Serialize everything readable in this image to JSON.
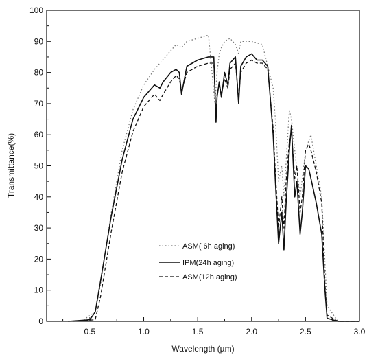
{
  "chart_data": {
    "type": "line",
    "title": "",
    "xlabel": "Wavelength (µm)",
    "ylabel": "Transmittance(%)",
    "xlim": [
      0.1,
      3.0
    ],
    "ylim": [
      0,
      100
    ],
    "x_ticks": [
      {
        "value": 0.5,
        "label": "0.5"
      },
      {
        "value": 1.0,
        "label": "1.0"
      },
      {
        "value": 1.5,
        "label": "1.5"
      },
      {
        "value": 2.0,
        "label": "2.0"
      },
      {
        "value": 2.5,
        "label": "2.5"
      },
      {
        "value": 3.0,
        "label": "3.0"
      }
    ],
    "y_ticks": [
      {
        "value": 0,
        "label": "0"
      },
      {
        "value": 10,
        "label": "10"
      },
      {
        "value": 20,
        "label": "20"
      },
      {
        "value": 30,
        "label": "30"
      },
      {
        "value": 40,
        "label": "40"
      },
      {
        "value": 50,
        "label": "50"
      },
      {
        "value": 60,
        "label": "60"
      },
      {
        "value": 70,
        "label": "70"
      },
      {
        "value": 80,
        "label": "80"
      },
      {
        "value": 90,
        "label": "90"
      },
      {
        "value": 100,
        "label": "100"
      }
    ],
    "grid": false,
    "legend_position": "lower-right",
    "series": [
      {
        "name": "ASM( 6h aging)",
        "style": "dotted",
        "color": "#777777",
        "x": [
          0.42,
          0.55,
          0.6,
          0.7,
          0.8,
          0.9,
          1.0,
          1.1,
          1.15,
          1.2,
          1.3,
          1.35,
          1.4,
          1.5,
          1.6,
          1.66,
          1.68,
          1.7,
          1.72,
          1.75,
          1.8,
          1.85,
          1.88,
          1.9,
          2.0,
          2.1,
          2.2,
          2.22,
          2.25,
          2.28,
          2.3,
          2.35,
          2.37,
          2.4,
          2.45,
          2.5,
          2.55,
          2.6,
          2.65,
          2.7,
          2.8
        ],
        "y": [
          0,
          3,
          12,
          35,
          55,
          68,
          76,
          81,
          83,
          85,
          89,
          88,
          90,
          91,
          92,
          70,
          80,
          86,
          88,
          90,
          91,
          89,
          86,
          90,
          90,
          89,
          75,
          65,
          45,
          50,
          40,
          68,
          65,
          55,
          40,
          55,
          60,
          50,
          40,
          5,
          0
        ]
      },
      {
        "name": "IPM(24h aging)",
        "style": "solid",
        "color": "#111111",
        "x": [
          0.3,
          0.5,
          0.55,
          0.6,
          0.7,
          0.8,
          0.9,
          1.0,
          1.1,
          1.15,
          1.18,
          1.25,
          1.3,
          1.33,
          1.35,
          1.4,
          1.5,
          1.6,
          1.65,
          1.67,
          1.68,
          1.7,
          1.72,
          1.75,
          1.78,
          1.8,
          1.85,
          1.88,
          1.9,
          1.95,
          2.0,
          2.05,
          2.1,
          2.15,
          2.2,
          2.22,
          2.25,
          2.28,
          2.3,
          2.32,
          2.35,
          2.37,
          2.4,
          2.42,
          2.45,
          2.47,
          2.5,
          2.53,
          2.55,
          2.6,
          2.65,
          2.68,
          2.7,
          2.8,
          3.0
        ],
        "y": [
          0,
          0.5,
          3,
          13,
          34,
          52,
          65,
          72,
          76,
          75,
          77,
          80,
          81,
          80,
          73,
          82,
          84,
          85,
          85,
          64,
          72,
          77,
          72,
          80,
          76,
          83,
          85,
          70,
          82,
          85,
          86,
          84,
          84,
          82,
          60,
          45,
          25,
          35,
          23,
          38,
          55,
          63,
          40,
          45,
          28,
          35,
          50,
          49,
          46,
          38,
          28,
          10,
          1,
          0,
          0
        ]
      },
      {
        "name": "ASM(12h aging)",
        "style": "dashed",
        "color": "#111111",
        "x": [
          0.35,
          0.55,
          0.6,
          0.7,
          0.8,
          0.9,
          1.0,
          1.1,
          1.15,
          1.18,
          1.25,
          1.3,
          1.33,
          1.35,
          1.4,
          1.5,
          1.6,
          1.65,
          1.67,
          1.68,
          1.7,
          1.72,
          1.75,
          1.78,
          1.8,
          1.85,
          1.88,
          1.9,
          1.95,
          2.0,
          2.05,
          2.1,
          2.15,
          2.2,
          2.22,
          2.25,
          2.28,
          2.3,
          2.32,
          2.35,
          2.37,
          2.4,
          2.42,
          2.45,
          2.47,
          2.5,
          2.53,
          2.55,
          2.6,
          2.65,
          2.68,
          2.7,
          2.8,
          3.0
        ],
        "y": [
          0,
          0.5,
          8,
          29,
          48,
          61,
          69,
          73,
          71,
          73,
          77,
          79,
          78,
          74,
          80,
          82,
          83,
          83,
          66,
          73,
          76,
          73,
          78,
          75,
          81,
          83,
          72,
          80,
          83,
          84,
          83,
          83,
          81,
          62,
          48,
          30,
          40,
          30,
          45,
          58,
          61,
          46,
          50,
          35,
          40,
          55,
          57,
          55,
          48,
          38,
          12,
          2,
          0,
          0
        ]
      }
    ]
  }
}
